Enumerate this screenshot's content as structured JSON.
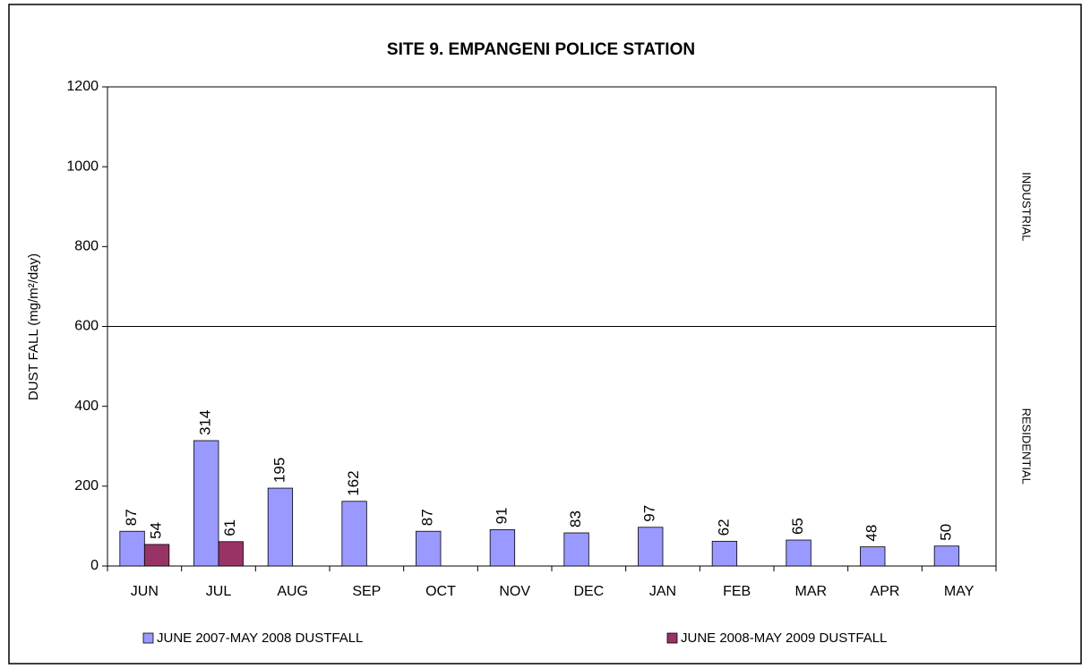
{
  "chart_data": {
    "type": "bar",
    "title": "SITE 9. EMPANGENI POLICE STATION",
    "y_label": "DUST FALL  (mg/m²/day)",
    "categories": [
      "JUN",
      "JUL",
      "AUG",
      "SEP",
      "OCT",
      "NOV",
      "DEC",
      "JAN",
      "FEB",
      "MAR",
      "APR",
      "MAY"
    ],
    "series": [
      {
        "name": "JUNE 2007-MAY 2008 DUSTFALL",
        "color": "#9999ff",
        "values": [
          87,
          314,
          195,
          162,
          87,
          91,
          83,
          97,
          62,
          65,
          48,
          50
        ]
      },
      {
        "name": "JUNE 2008-MAY 2009 DUSTFALL",
        "color": "#993366",
        "values": [
          54,
          61,
          null,
          null,
          null,
          null,
          null,
          null,
          null,
          null,
          null,
          null
        ]
      }
    ],
    "ylim": [
      0,
      1200
    ],
    "yticks": [
      0,
      200,
      400,
      600,
      800,
      1000,
      1200
    ],
    "threshold": 600,
    "annotations": [
      "INDUSTRIAL",
      "RESIDENTIAL"
    ],
    "grid": false
  }
}
